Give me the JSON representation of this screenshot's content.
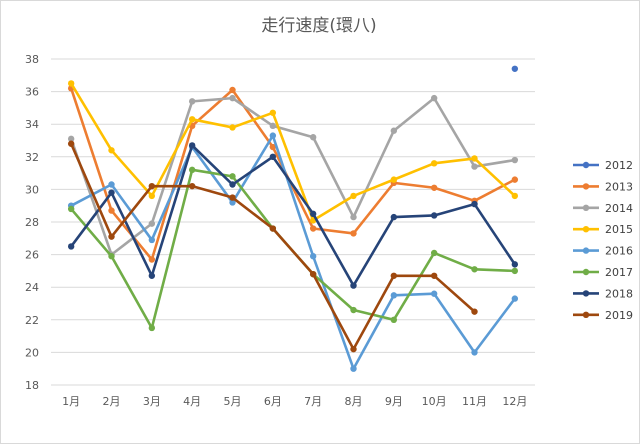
{
  "chart_data": {
    "type": "line",
    "title": "走行速度(環八)",
    "xlabel": "",
    "ylabel": "",
    "categories": [
      "1月",
      "2月",
      "3月",
      "4月",
      "5月",
      "6月",
      "7月",
      "8月",
      "9月",
      "10月",
      "11月",
      "12月"
    ],
    "ylim": [
      18,
      38
    ],
    "yticks": [
      "18",
      "20",
      "22",
      "24",
      "26",
      "28",
      "30",
      "32",
      "34",
      "36",
      "38"
    ],
    "grid": true,
    "legend": "right",
    "series": [
      {
        "name": "2012",
        "color": "#4472c4",
        "values": [
          null,
          null,
          null,
          null,
          null,
          null,
          null,
          null,
          null,
          null,
          null,
          37.4
        ]
      },
      {
        "name": "2013",
        "color": "#ed7d31",
        "values": [
          36.2,
          28.7,
          25.7,
          33.9,
          36.1,
          32.6,
          27.6,
          27.3,
          30.4,
          30.1,
          29.3,
          30.6
        ]
      },
      {
        "name": "2014",
        "color": "#a5a5a5",
        "values": [
          33.1,
          26.0,
          27.9,
          35.4,
          35.6,
          33.9,
          33.2,
          28.3,
          33.6,
          35.6,
          31.4,
          31.8
        ]
      },
      {
        "name": "2015",
        "color": "#ffc000",
        "values": [
          36.5,
          32.4,
          29.6,
          34.3,
          33.8,
          34.7,
          28.1,
          29.6,
          30.6,
          31.6,
          31.9,
          29.6
        ]
      },
      {
        "name": "2016",
        "color": "#5b9bd5",
        "values": [
          29.0,
          30.3,
          26.9,
          32.6,
          29.2,
          33.3,
          25.9,
          19.0,
          23.5,
          23.6,
          20.0,
          23.3
        ]
      },
      {
        "name": "2017",
        "color": "#70ad47",
        "values": [
          28.8,
          25.9,
          21.5,
          31.2,
          30.8,
          27.6,
          24.8,
          22.6,
          22.0,
          26.1,
          25.1,
          25.0
        ]
      },
      {
        "name": "2018",
        "color": "#264478",
        "values": [
          26.5,
          29.8,
          24.7,
          32.7,
          30.3,
          32.0,
          28.5,
          24.1,
          28.3,
          28.4,
          29.1,
          25.4
        ]
      },
      {
        "name": "2019",
        "color": "#9e480e",
        "values": [
          32.8,
          27.1,
          30.2,
          30.2,
          29.5,
          27.6,
          24.8,
          20.2,
          24.7,
          24.7,
          22.5,
          null
        ]
      }
    ]
  }
}
